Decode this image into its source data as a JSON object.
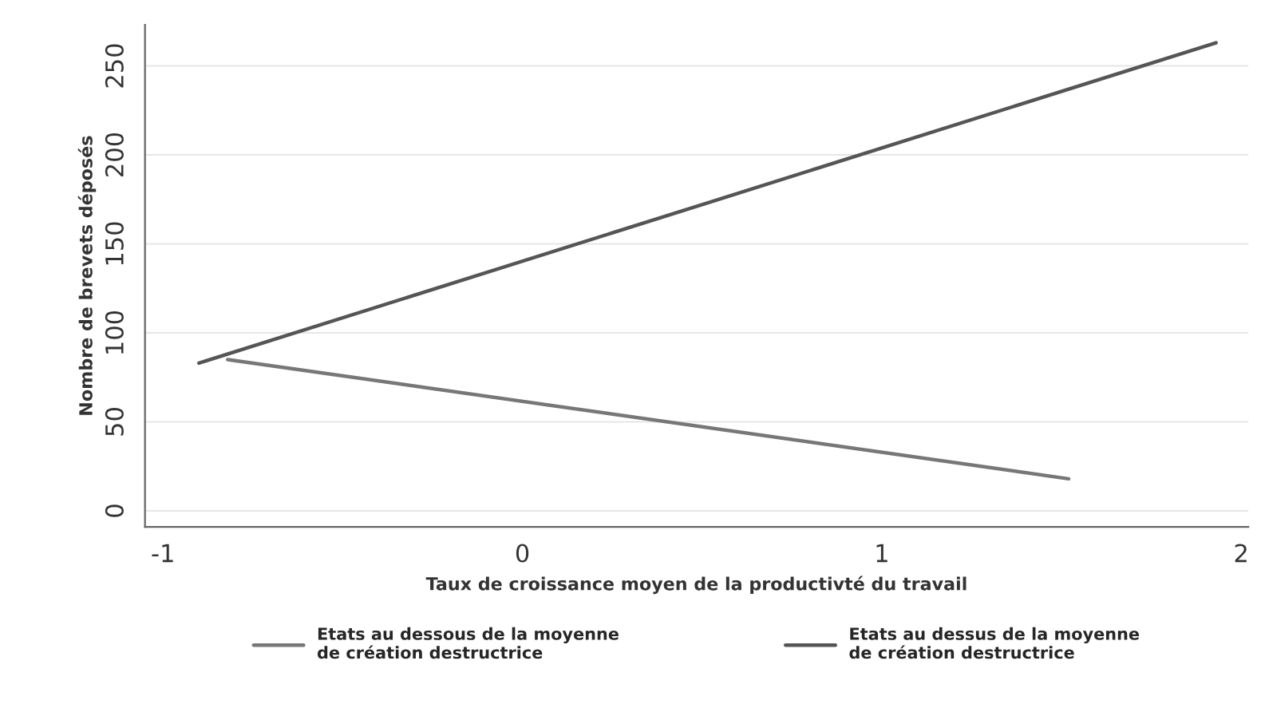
{
  "chart_data": {
    "type": "line",
    "xlabel": "Taux de croissance moyen de la productivté du travail",
    "ylabel": "Nombre de brevets déposés",
    "series": [
      {
        "name": "Etats au dessous de la moyenne\nde création destructrice",
        "color": "#777777",
        "x": [
          -0.82,
          1.52
        ],
        "values": [
          85,
          18
        ]
      },
      {
        "name": "Etats au dessus de la moyenne\nde création destructrice",
        "color": "#555555",
        "x": [
          -0.9,
          1.93
        ],
        "values": [
          83,
          263
        ]
      }
    ],
    "xlim": [
      -1.05,
      2.02
    ],
    "xticks": [
      -1,
      0,
      1,
      2
    ],
    "ylim": [
      -9,
      273
    ],
    "yticks": [
      0,
      50,
      100,
      150,
      200,
      250
    ],
    "grid": "y",
    "legend": "bottom",
    "marker": "none",
    "line_style": "solid"
  }
}
